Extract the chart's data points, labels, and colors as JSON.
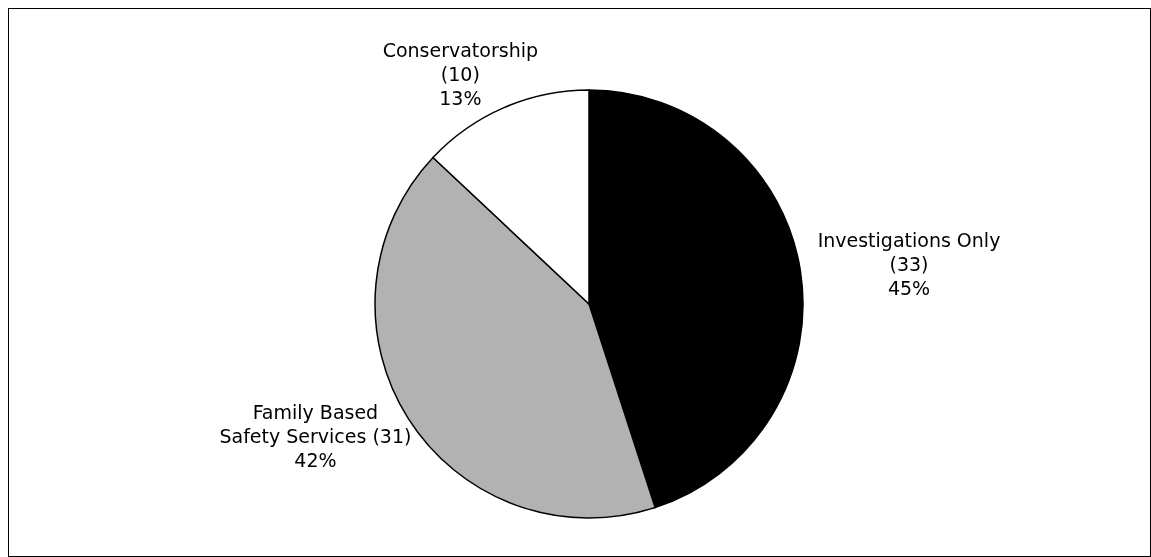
{
  "chart_data": {
    "type": "pie",
    "categories": [
      "Investigations Only\n(33)",
      "Family Based\nSafety Services (31)",
      "Conservatorship\n(10)"
    ],
    "values": [
      45,
      42,
      13
    ],
    "colors": [
      "#000000",
      "#b2b2b2",
      "#ffffff"
    ],
    "value_labels": [
      "45%",
      "42%",
      "13%"
    ],
    "legend": false
  }
}
